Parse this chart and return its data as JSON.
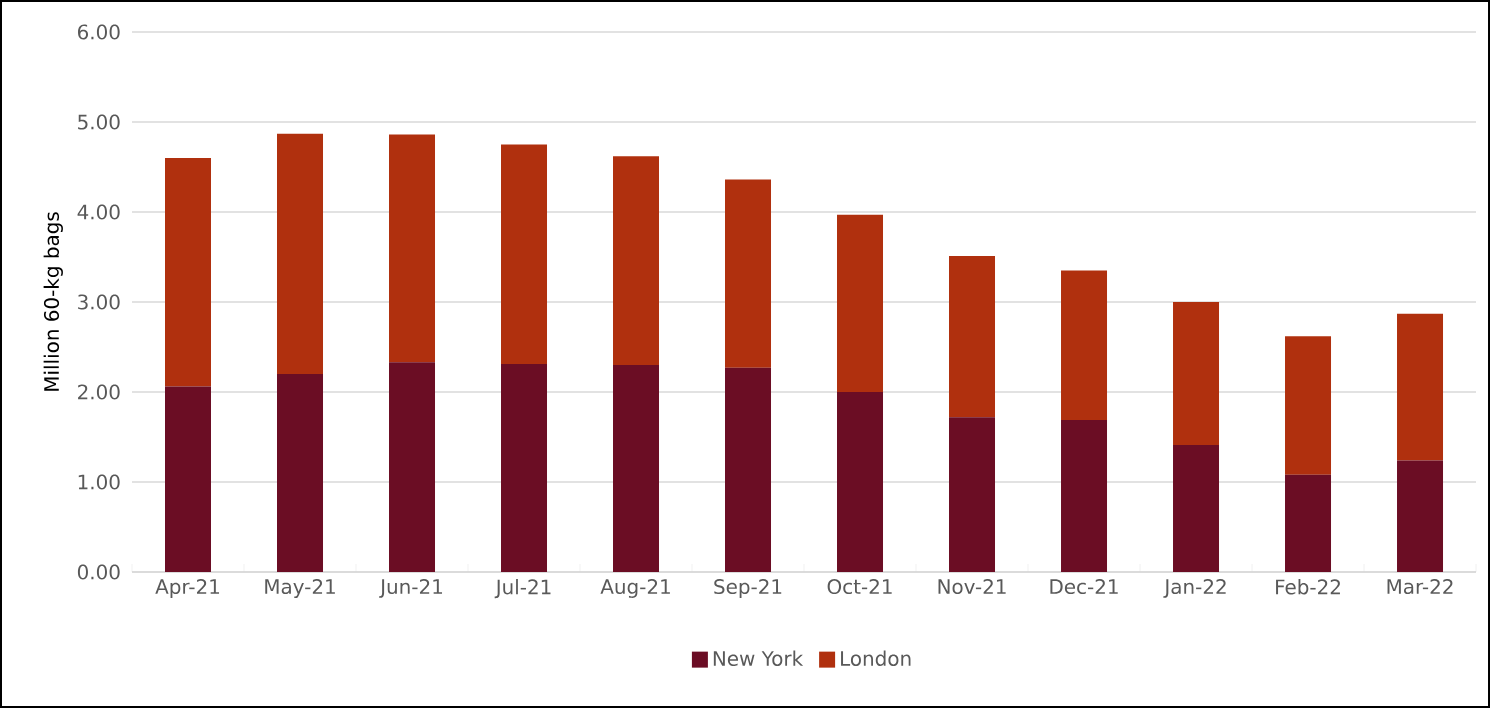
{
  "chart_data": {
    "type": "bar",
    "stacked": true,
    "ylabel": "Million 60-kg bags",
    "categories": [
      "Apr-21",
      "May-21",
      "Jun-21",
      "Jul-21",
      "Aug-21",
      "Sep-21",
      "Oct-21",
      "Nov-21",
      "Dec-21",
      "Jan-22",
      "Feb-22",
      "Mar-22"
    ],
    "series": [
      {
        "name": "New York",
        "color": "#6b0d24",
        "values": [
          2.06,
          2.2,
          2.33,
          2.31,
          2.3,
          2.27,
          2.0,
          1.72,
          1.69,
          1.41,
          1.08,
          1.24
        ]
      },
      {
        "name": "London",
        "color": "#b0300e",
        "values": [
          2.54,
          2.67,
          2.53,
          2.44,
          2.32,
          2.09,
          1.97,
          1.79,
          1.66,
          1.59,
          1.54,
          1.63
        ]
      }
    ],
    "ylim": [
      0,
      6
    ],
    "yticks": [
      {
        "value": 0,
        "label": "0.00"
      },
      {
        "value": 1,
        "label": "1.00"
      },
      {
        "value": 2,
        "label": "2.00"
      },
      {
        "value": 3,
        "label": "3.00"
      },
      {
        "value": 4,
        "label": "4.00"
      },
      {
        "value": 5,
        "label": "5.00"
      },
      {
        "value": 6,
        "label": "6.00"
      }
    ],
    "grid": "y",
    "legend": "bottom"
  }
}
